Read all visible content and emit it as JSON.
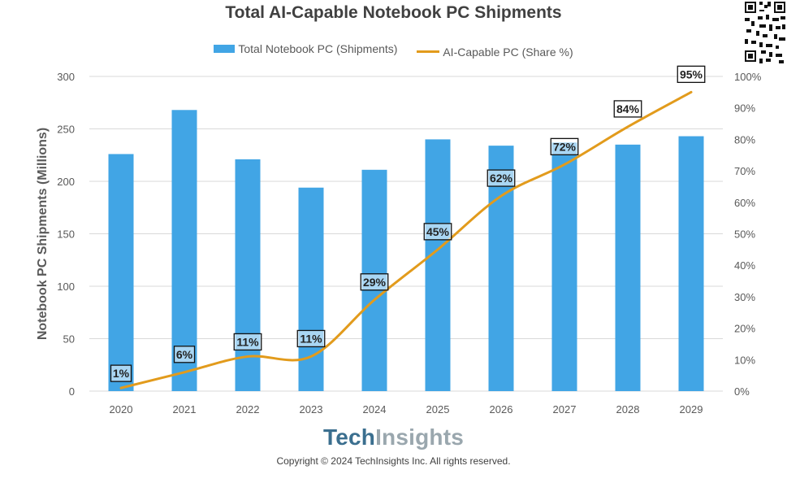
{
  "chart_data": {
    "type": "bar",
    "title": "Total AI-Capable Notebook PC Shipments",
    "categories": [
      "2020",
      "2021",
      "2022",
      "2023",
      "2024",
      "2025",
      "2026",
      "2027",
      "2028",
      "2029"
    ],
    "series": [
      {
        "name": "Total Notebook PC (Shipments)",
        "type": "bar",
        "axis": "left",
        "values": [
          226,
          268,
          221,
          194,
          211,
          240,
          234,
          237,
          235,
          243
        ]
      },
      {
        "name": "AI-Capable PC (Share %)",
        "type": "line",
        "axis": "right",
        "values": [
          1,
          6,
          11,
          11,
          29,
          45,
          62,
          72,
          84,
          95
        ],
        "labels": [
          "1%",
          "6%",
          "11%",
          "11%",
          "29%",
          "45%",
          "62%",
          "72%",
          "84%",
          "95%"
        ]
      }
    ],
    "ylabel": "Notebook PC Shipments (Millions)",
    "ylim": [
      0,
      300
    ],
    "y_ticks": [
      "0",
      "50",
      "100",
      "150",
      "200",
      "250",
      "300"
    ],
    "y2lim": [
      0,
      100
    ],
    "y2_ticks": [
      "0%",
      "10%",
      "20%",
      "30%",
      "40%",
      "50%",
      "60%",
      "70%",
      "80%",
      "90%",
      "100%"
    ],
    "grid": true,
    "legend": "top-center",
    "colors": {
      "bar": "#41a5e5",
      "line": "#e29b1c",
      "grid": "#d9d9d9",
      "text": "#595959"
    }
  },
  "brand": {
    "part1": "Tech",
    "part2": "Insights"
  },
  "copyright": "Copyright © 2024 TechInsights Inc.  All rights reserved."
}
